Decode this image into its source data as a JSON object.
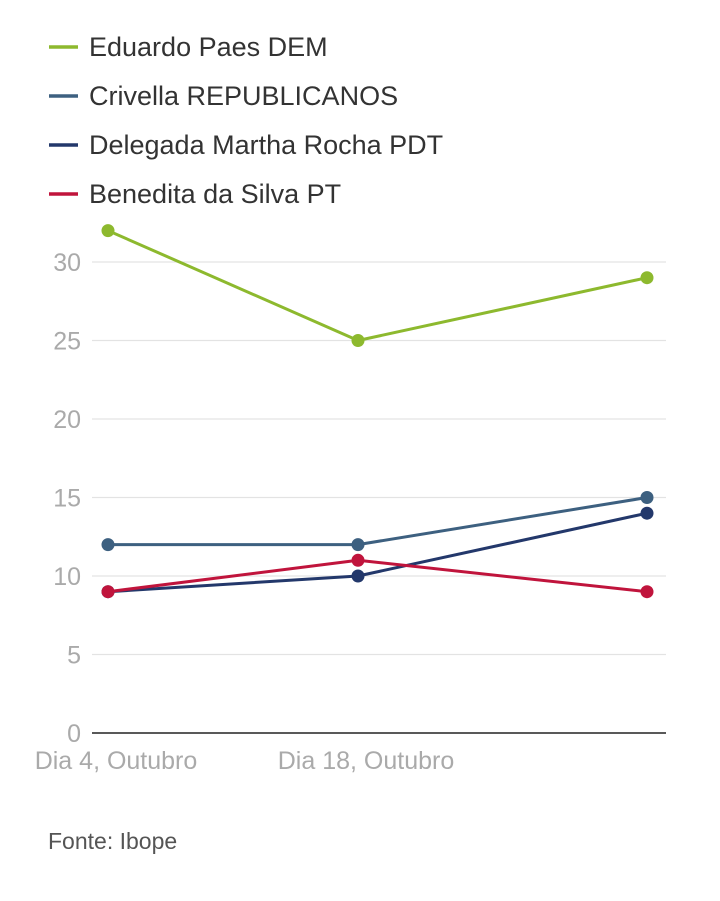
{
  "chart_data": {
    "type": "line",
    "x": [
      "Dia 4, Outubro",
      "Dia 18, Outubro",
      ""
    ],
    "xticks": [
      "Dia 4, Outubro",
      "Dia 18, Outubro"
    ],
    "yticks": [
      "0",
      "5",
      "10",
      "15",
      "20",
      "25",
      "30"
    ],
    "ylim": [
      0,
      32
    ],
    "grid": true,
    "legend_position": "top-left",
    "series": [
      {
        "name": "Eduardo Paes DEM",
        "color": "#8db92e",
        "values": [
          32,
          25,
          29
        ]
      },
      {
        "name": "Crivella REPUBLICANOS",
        "color": "#3d6080",
        "values": [
          12,
          12,
          15
        ]
      },
      {
        "name": "Delegada Martha Rocha PDT",
        "color": "#23386b",
        "values": [
          9,
          10,
          14
        ]
      },
      {
        "name": "Benedita da Silva PT",
        "color": "#c0143c",
        "values": [
          9,
          11,
          9
        ]
      }
    ]
  },
  "source": "Fonte: Ibope"
}
